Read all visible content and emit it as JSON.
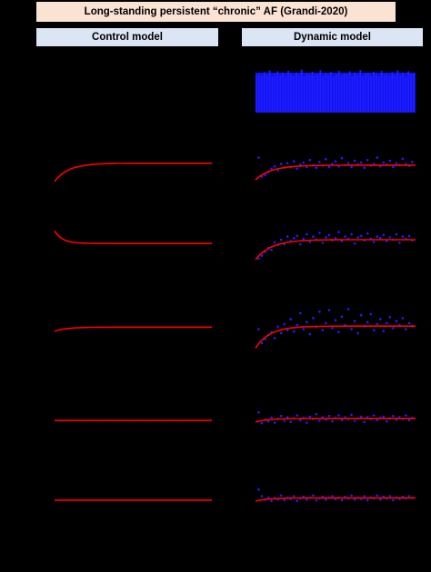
{
  "header": {
    "title": "Long-standing persistent “chronic” AF (Grandi-2020)",
    "control_label": "Control model",
    "dynamic_label": "Dynamic model"
  },
  "colors": {
    "background": "#000000",
    "title_fill": "#fbe3d3",
    "column_header_fill": "#dbe5f4",
    "model_curve": "#ff0000",
    "data_points": "#1f1fff"
  },
  "chart_data": [
    {
      "type": "bar",
      "panel": "dynamic",
      "row": 0,
      "x": [
        0,
        1,
        2,
        3,
        4,
        5,
        6,
        7,
        8,
        9,
        10,
        11,
        12,
        13,
        14,
        15,
        16,
        17,
        18,
        19,
        20,
        21,
        22,
        23,
        24,
        25,
        26,
        27,
        28,
        29,
        30,
        31,
        32,
        33,
        34,
        35,
        36,
        37,
        38,
        39,
        40,
        41,
        42,
        43,
        44,
        45,
        46,
        47,
        48,
        49,
        50,
        51,
        52,
        53,
        54,
        55,
        56,
        57,
        58,
        59
      ],
      "values": [
        0.87,
        0.9,
        0.84,
        0.93,
        0.86,
        0.97,
        0.83,
        0.89,
        0.95,
        0.85,
        0.91,
        0.82,
        0.96,
        0.88,
        0.84,
        0.92,
        0.86,
        0.99,
        0.83,
        0.9,
        0.87,
        0.94,
        0.85,
        0.89,
        0.97,
        0.84,
        0.91,
        0.86,
        0.93,
        0.82,
        0.88,
        0.96,
        0.85,
        0.9,
        0.87,
        0.95,
        0.83,
        0.92,
        0.86,
        0.98,
        0.84,
        0.89,
        0.91,
        0.85,
        0.94,
        0.87,
        0.83,
        0.96,
        0.88,
        0.9,
        0.84,
        0.93,
        0.86,
        0.97,
        0.85,
        0.91,
        0.82,
        0.95,
        0.88,
        0.9
      ],
      "ylim": [
        0,
        1
      ]
    },
    {
      "type": "line",
      "panel": "control",
      "row": 1,
      "curve": {
        "start": 0.15,
        "plateau": 0.72,
        "tau": 0.09
      },
      "ylim": [
        0,
        1
      ]
    },
    {
      "type": "scatter",
      "panel": "dynamic",
      "row": 1,
      "curve": {
        "start": 0.2,
        "plateau": 0.66,
        "tau": 0.1
      },
      "points": [
        [
          0.02,
          0.9
        ],
        [
          0.04,
          0.3
        ],
        [
          0.06,
          0.35
        ],
        [
          0.08,
          0.45
        ],
        [
          0.1,
          0.55
        ],
        [
          0.12,
          0.62
        ],
        [
          0.14,
          0.5
        ],
        [
          0.16,
          0.7
        ],
        [
          0.18,
          0.58
        ],
        [
          0.2,
          0.72
        ],
        [
          0.22,
          0.6
        ],
        [
          0.24,
          0.78
        ],
        [
          0.26,
          0.55
        ],
        [
          0.28,
          0.68
        ],
        [
          0.3,
          0.74
        ],
        [
          0.32,
          0.6
        ],
        [
          0.34,
          0.82
        ],
        [
          0.36,
          0.66
        ],
        [
          0.38,
          0.58
        ],
        [
          0.4,
          0.76
        ],
        [
          0.42,
          0.64
        ],
        [
          0.44,
          0.85
        ],
        [
          0.46,
          0.6
        ],
        [
          0.48,
          0.7
        ],
        [
          0.5,
          0.78
        ],
        [
          0.52,
          0.62
        ],
        [
          0.54,
          0.88
        ],
        [
          0.56,
          0.66
        ],
        [
          0.58,
          0.72
        ],
        [
          0.6,
          0.6
        ],
        [
          0.62,
          0.8
        ],
        [
          0.64,
          0.68
        ],
        [
          0.66,
          0.74
        ],
        [
          0.68,
          0.58
        ],
        [
          0.7,
          0.82
        ],
        [
          0.72,
          0.65
        ],
        [
          0.74,
          0.7
        ],
        [
          0.76,
          0.9
        ],
        [
          0.78,
          0.62
        ],
        [
          0.8,
          0.74
        ],
        [
          0.82,
          0.68
        ],
        [
          0.84,
          0.8
        ],
        [
          0.86,
          0.6
        ],
        [
          0.88,
          0.72
        ],
        [
          0.9,
          0.66
        ],
        [
          0.92,
          0.86
        ],
        [
          0.94,
          0.7
        ],
        [
          0.96,
          0.64
        ],
        [
          0.98,
          0.76
        ]
      ],
      "ylim": [
        0,
        1
      ]
    },
    {
      "type": "line",
      "panel": "control",
      "row": 2,
      "curve": {
        "start": 0.85,
        "plateau": 0.52,
        "tau": 0.05
      },
      "ylim": [
        0,
        1
      ]
    },
    {
      "type": "scatter",
      "panel": "dynamic",
      "row": 2,
      "curve": {
        "start": 0.1,
        "plateau": 0.62,
        "tau": 0.1
      },
      "points": [
        [
          0.02,
          0.12
        ],
        [
          0.04,
          0.2
        ],
        [
          0.06,
          0.3
        ],
        [
          0.08,
          0.4
        ],
        [
          0.1,
          0.35
        ],
        [
          0.12,
          0.55
        ],
        [
          0.14,
          0.48
        ],
        [
          0.16,
          0.62
        ],
        [
          0.18,
          0.5
        ],
        [
          0.2,
          0.7
        ],
        [
          0.22,
          0.58
        ],
        [
          0.24,
          0.66
        ],
        [
          0.26,
          0.72
        ],
        [
          0.28,
          0.5
        ],
        [
          0.3,
          0.64
        ],
        [
          0.32,
          0.76
        ],
        [
          0.34,
          0.56
        ],
        [
          0.36,
          0.7
        ],
        [
          0.38,
          0.62
        ],
        [
          0.4,
          0.8
        ],
        [
          0.42,
          0.54
        ],
        [
          0.44,
          0.68
        ],
        [
          0.46,
          0.74
        ],
        [
          0.48,
          0.6
        ],
        [
          0.5,
          0.66
        ],
        [
          0.52,
          0.82
        ],
        [
          0.54,
          0.58
        ],
        [
          0.56,
          0.7
        ],
        [
          0.58,
          0.64
        ],
        [
          0.6,
          0.76
        ],
        [
          0.62,
          0.52
        ],
        [
          0.64,
          0.68
        ],
        [
          0.66,
          0.72
        ],
        [
          0.68,
          0.6
        ],
        [
          0.7,
          0.78
        ],
        [
          0.72,
          0.64
        ],
        [
          0.74,
          0.56
        ],
        [
          0.76,
          0.7
        ],
        [
          0.78,
          0.66
        ],
        [
          0.8,
          0.74
        ],
        [
          0.82,
          0.58
        ],
        [
          0.84,
          0.68
        ],
        [
          0.86,
          0.62
        ],
        [
          0.88,
          0.76
        ],
        [
          0.9,
          0.54
        ],
        [
          0.92,
          0.7
        ],
        [
          0.94,
          0.64
        ],
        [
          0.96,
          0.72
        ],
        [
          0.98,
          0.6
        ]
      ],
      "ylim": [
        0,
        1
      ]
    },
    {
      "type": "line",
      "panel": "control",
      "row": 3,
      "curve": {
        "start": 0.46,
        "plateau": 0.54,
        "tau": 0.08
      },
      "ylim": [
        0,
        1
      ]
    },
    {
      "type": "scatter",
      "panel": "dynamic",
      "row": 3,
      "curve": {
        "start": 0.12,
        "plateau": 0.56,
        "tau": 0.09
      },
      "points": [
        [
          0.02,
          0.5
        ],
        [
          0.04,
          0.22
        ],
        [
          0.06,
          0.3
        ],
        [
          0.08,
          0.38
        ],
        [
          0.1,
          0.44
        ],
        [
          0.12,
          0.32
        ],
        [
          0.14,
          0.55
        ],
        [
          0.16,
          0.42
        ],
        [
          0.18,
          0.6
        ],
        [
          0.2,
          0.48
        ],
        [
          0.22,
          0.7
        ],
        [
          0.24,
          0.45
        ],
        [
          0.26,
          0.58
        ],
        [
          0.28,
          0.82
        ],
        [
          0.3,
          0.5
        ],
        [
          0.32,
          0.64
        ],
        [
          0.34,
          0.4
        ],
        [
          0.36,
          0.72
        ],
        [
          0.38,
          0.55
        ],
        [
          0.4,
          0.85
        ],
        [
          0.42,
          0.48
        ],
        [
          0.44,
          0.62
        ],
        [
          0.46,
          0.88
        ],
        [
          0.48,
          0.52
        ],
        [
          0.5,
          0.68
        ],
        [
          0.52,
          0.44
        ],
        [
          0.54,
          0.75
        ],
        [
          0.56,
          0.58
        ],
        [
          0.58,
          0.9
        ],
        [
          0.6,
          0.5
        ],
        [
          0.62,
          0.66
        ],
        [
          0.64,
          0.42
        ],
        [
          0.66,
          0.78
        ],
        [
          0.68,
          0.56
        ],
        [
          0.7,
          0.64
        ],
        [
          0.72,
          0.8
        ],
        [
          0.74,
          0.48
        ],
        [
          0.76,
          0.6
        ],
        [
          0.78,
          0.7
        ],
        [
          0.8,
          0.46
        ],
        [
          0.82,
          0.62
        ],
        [
          0.84,
          0.74
        ],
        [
          0.86,
          0.52
        ],
        [
          0.88,
          0.66
        ],
        [
          0.9,
          0.58
        ],
        [
          0.92,
          0.72
        ],
        [
          0.94,
          0.5
        ],
        [
          0.96,
          0.62
        ],
        [
          0.98,
          0.56
        ]
      ],
      "ylim": [
        0,
        1
      ]
    },
    {
      "type": "line",
      "panel": "control",
      "row": 4,
      "curve": {
        "start": 0.45,
        "plateau": 0.45,
        "tau": 0.1
      },
      "ylim": [
        0,
        1
      ]
    },
    {
      "type": "scatter",
      "panel": "dynamic",
      "row": 4,
      "curve": {
        "start": 0.4,
        "plateau": 0.52,
        "tau": 0.08
      },
      "points": [
        [
          0.02,
          0.72
        ],
        [
          0.04,
          0.36
        ],
        [
          0.06,
          0.48
        ],
        [
          0.08,
          0.42
        ],
        [
          0.1,
          0.55
        ],
        [
          0.12,
          0.38
        ],
        [
          0.14,
          0.5
        ],
        [
          0.16,
          0.6
        ],
        [
          0.18,
          0.44
        ],
        [
          0.2,
          0.56
        ],
        [
          0.22,
          0.4
        ],
        [
          0.24,
          0.52
        ],
        [
          0.26,
          0.62
        ],
        [
          0.28,
          0.46
        ],
        [
          0.3,
          0.54
        ],
        [
          0.32,
          0.38
        ],
        [
          0.34,
          0.58
        ],
        [
          0.36,
          0.5
        ],
        [
          0.38,
          0.66
        ],
        [
          0.4,
          0.44
        ],
        [
          0.42,
          0.56
        ],
        [
          0.44,
          0.48
        ],
        [
          0.46,
          0.6
        ],
        [
          0.48,
          0.42
        ],
        [
          0.5,
          0.54
        ],
        [
          0.52,
          0.62
        ],
        [
          0.54,
          0.46
        ],
        [
          0.56,
          0.56
        ],
        [
          0.58,
          0.5
        ],
        [
          0.6,
          0.64
        ],
        [
          0.62,
          0.44
        ],
        [
          0.64,
          0.52
        ],
        [
          0.66,
          0.58
        ],
        [
          0.68,
          0.4
        ],
        [
          0.7,
          0.56
        ],
        [
          0.72,
          0.5
        ],
        [
          0.74,
          0.62
        ],
        [
          0.76,
          0.46
        ],
        [
          0.78,
          0.54
        ],
        [
          0.8,
          0.58
        ],
        [
          0.82,
          0.42
        ],
        [
          0.84,
          0.52
        ],
        [
          0.86,
          0.6
        ],
        [
          0.88,
          0.48
        ],
        [
          0.9,
          0.56
        ],
        [
          0.92,
          0.5
        ],
        [
          0.94,
          0.62
        ],
        [
          0.96,
          0.46
        ],
        [
          0.98,
          0.54
        ]
      ],
      "ylim": [
        0,
        1
      ]
    },
    {
      "type": "line",
      "panel": "control",
      "row": 5,
      "curve": {
        "start": 0.38,
        "plateau": 0.38,
        "tau": 0.1
      },
      "ylim": [
        0,
        1
      ]
    },
    {
      "type": "scatter",
      "panel": "dynamic",
      "row": 5,
      "curve": {
        "start": 0.35,
        "plateau": 0.45,
        "tau": 0.08
      },
      "points": [
        [
          0.02,
          0.7
        ],
        [
          0.04,
          0.5
        ],
        [
          0.06,
          0.4
        ],
        [
          0.08,
          0.46
        ],
        [
          0.1,
          0.36
        ],
        [
          0.12,
          0.44
        ],
        [
          0.14,
          0.4
        ],
        [
          0.16,
          0.52
        ],
        [
          0.18,
          0.38
        ],
        [
          0.2,
          0.46
        ],
        [
          0.22,
          0.42
        ],
        [
          0.24,
          0.5
        ],
        [
          0.26,
          0.36
        ],
        [
          0.28,
          0.44
        ],
        [
          0.3,
          0.48
        ],
        [
          0.32,
          0.4
        ],
        [
          0.34,
          0.46
        ],
        [
          0.36,
          0.52
        ],
        [
          0.38,
          0.38
        ],
        [
          0.4,
          0.44
        ],
        [
          0.42,
          0.48
        ],
        [
          0.44,
          0.4
        ],
        [
          0.46,
          0.46
        ],
        [
          0.48,
          0.5
        ],
        [
          0.5,
          0.42
        ],
        [
          0.52,
          0.46
        ],
        [
          0.54,
          0.38
        ],
        [
          0.56,
          0.48
        ],
        [
          0.58,
          0.44
        ],
        [
          0.6,
          0.52
        ],
        [
          0.62,
          0.4
        ],
        [
          0.64,
          0.46
        ],
        [
          0.66,
          0.42
        ],
        [
          0.68,
          0.5
        ],
        [
          0.7,
          0.38
        ],
        [
          0.72,
          0.46
        ],
        [
          0.74,
          0.44
        ],
        [
          0.76,
          0.52
        ],
        [
          0.78,
          0.4
        ],
        [
          0.8,
          0.48
        ],
        [
          0.82,
          0.44
        ],
        [
          0.84,
          0.5
        ],
        [
          0.86,
          0.38
        ],
        [
          0.88,
          0.46
        ],
        [
          0.9,
          0.42
        ],
        [
          0.92,
          0.48
        ],
        [
          0.94,
          0.44
        ],
        [
          0.96,
          0.5
        ],
        [
          0.98,
          0.46
        ]
      ],
      "ylim": [
        0,
        1
      ]
    }
  ]
}
